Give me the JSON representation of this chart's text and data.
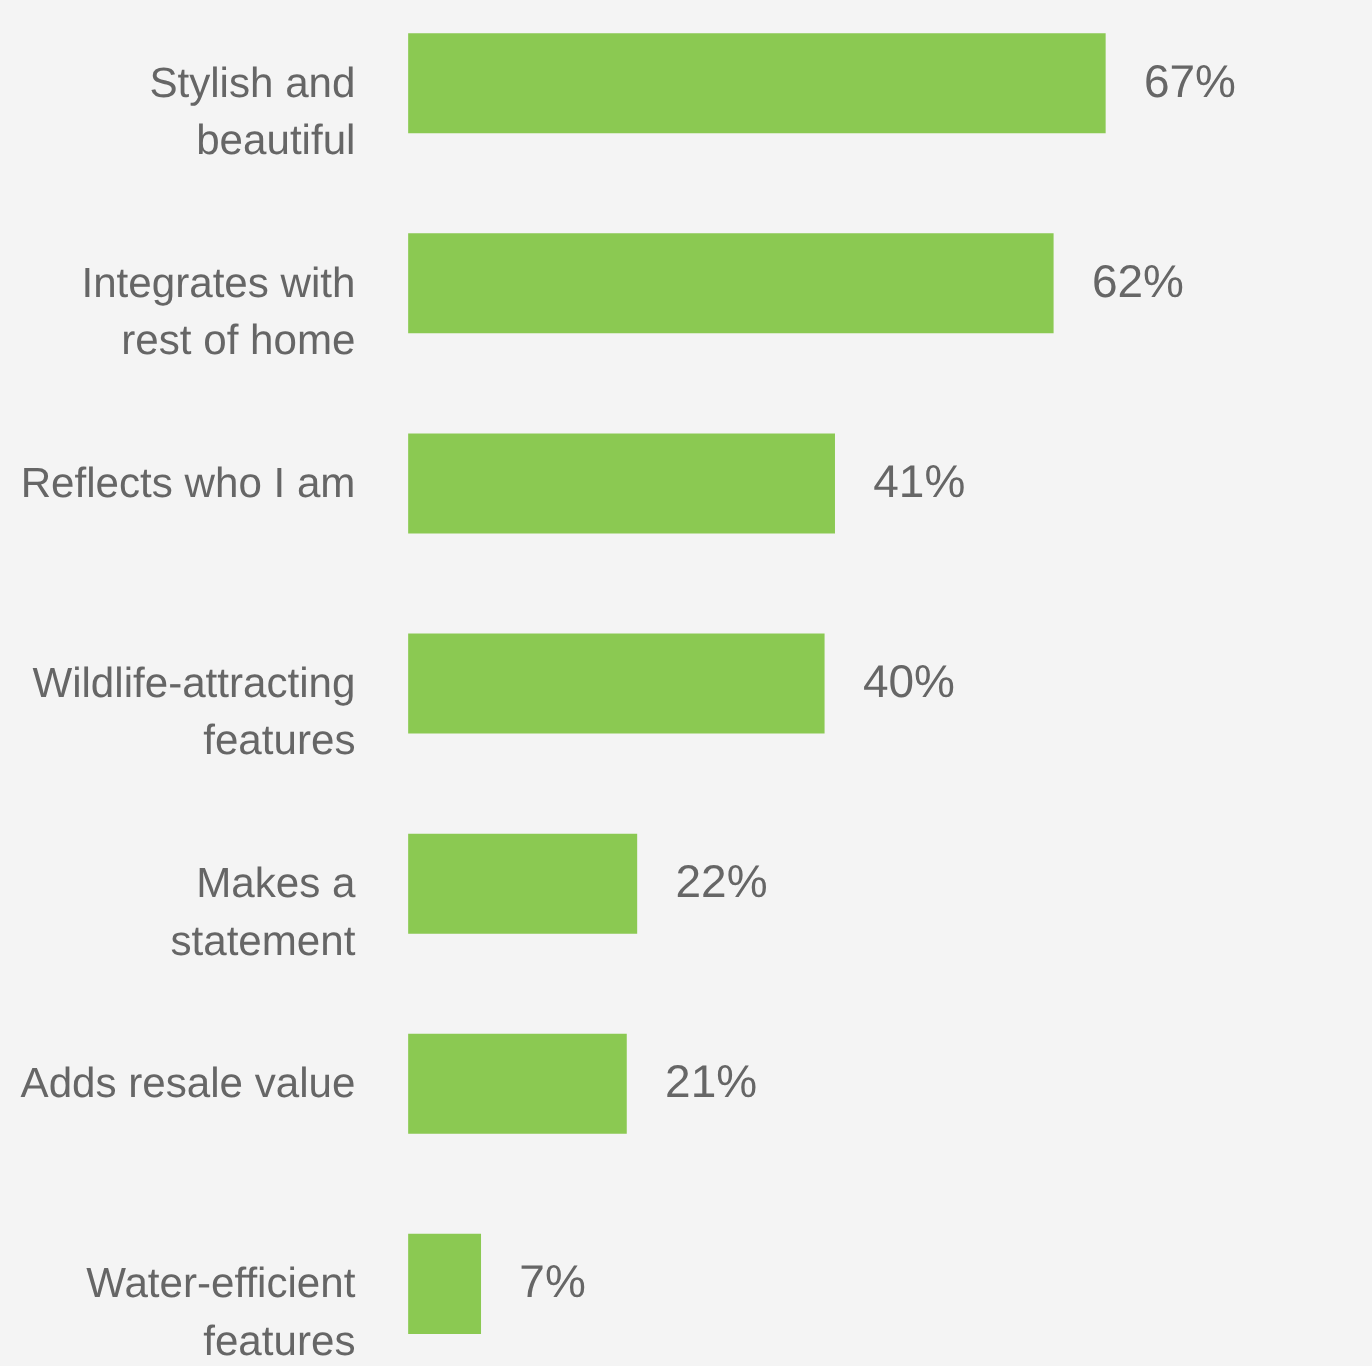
{
  "chart_data": {
    "type": "bar",
    "orientation": "horizontal",
    "categories": [
      "Stylish and\nbeautiful",
      "Integrates with\nrest of home",
      "Reflects who I am",
      "Wildlife-attracting\nfeatures",
      "Makes a\nstatement",
      "Adds resale value",
      "Water-efficient\nfeatures"
    ],
    "values": [
      67,
      62,
      41,
      40,
      22,
      21,
      7
    ],
    "color": "#8bc952",
    "data_labels": true,
    "value_labels": [
      "67%",
      "62%",
      "41%",
      "40%",
      "22%",
      "21%",
      "7%"
    ]
  }
}
